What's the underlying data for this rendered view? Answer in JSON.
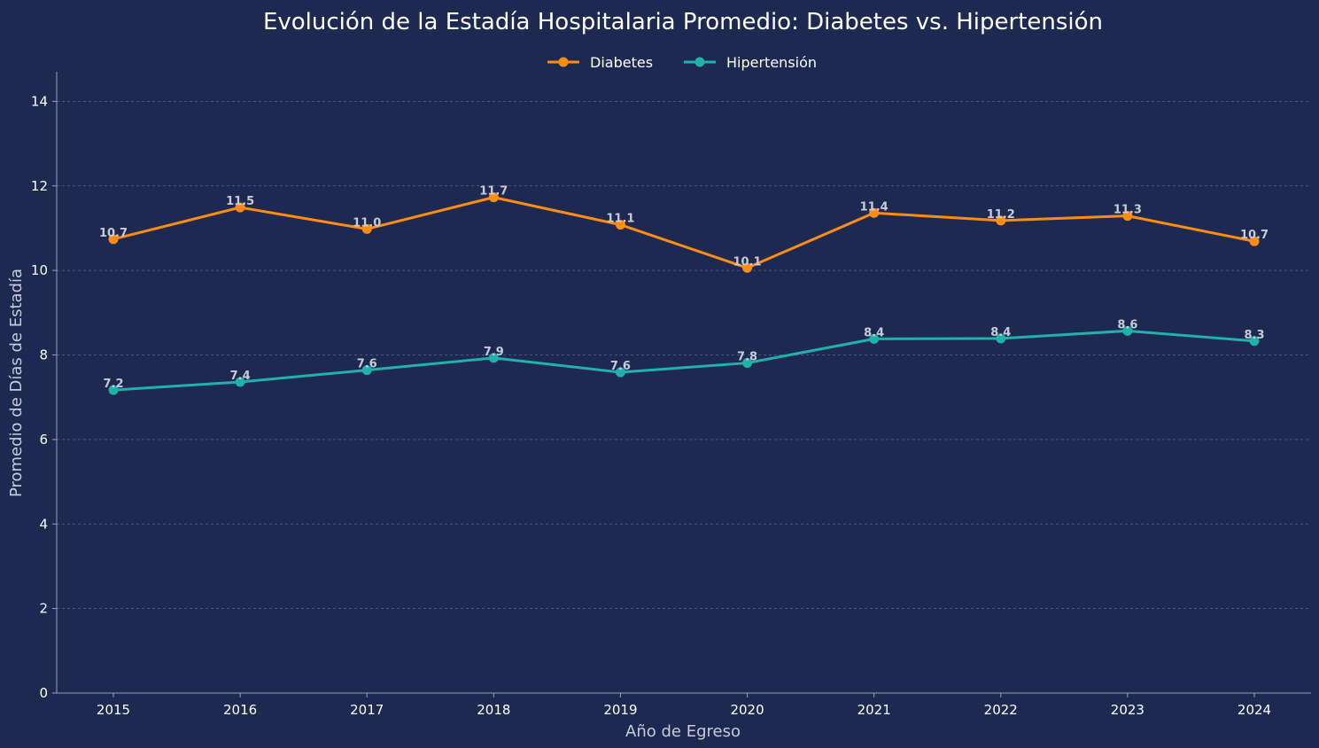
{
  "chart_data": {
    "type": "line",
    "title": "Evolución de la Estadía Hospitalaria Promedio: Diabetes vs. Hipertensión",
    "xlabel": "Año de Egreso",
    "ylabel": "Promedio de Días de Estadía",
    "x": [
      "2015",
      "2016",
      "2017",
      "2018",
      "2019",
      "2020",
      "2021",
      "2022",
      "2023",
      "2024"
    ],
    "ylim": [
      0,
      14.7
    ],
    "yticks": [
      "0",
      "2",
      "4",
      "6",
      "8",
      "10",
      "12",
      "14"
    ],
    "grid": "horizontal dashed",
    "legend_position": "top-center",
    "series": [
      {
        "name": "Diabetes",
        "color": "#ff8c0f",
        "values": [
          10.74,
          11.49,
          10.98,
          11.73,
          11.08,
          10.06,
          11.36,
          11.18,
          11.29,
          10.69
        ],
        "labels": [
          "10.7",
          "11.5",
          "11.0",
          "11.7",
          "11.1",
          "10.1",
          "11.4",
          "11.2",
          "11.3",
          "10.7"
        ]
      },
      {
        "name": "Hipertensión",
        "color": "#20b2aa",
        "values": [
          7.17,
          7.36,
          7.64,
          7.93,
          7.59,
          7.81,
          8.38,
          8.39,
          8.57,
          8.33
        ],
        "labels": [
          "7.2",
          "7.4",
          "7.6",
          "7.9",
          "7.6",
          "7.8",
          "8.4",
          "8.4",
          "8.6",
          "8.3"
        ]
      }
    ]
  },
  "colors": {
    "background": "#1d2951",
    "grid": "#5a6588",
    "text": "#ffffff",
    "muted_text": "#c8cbd6"
  }
}
